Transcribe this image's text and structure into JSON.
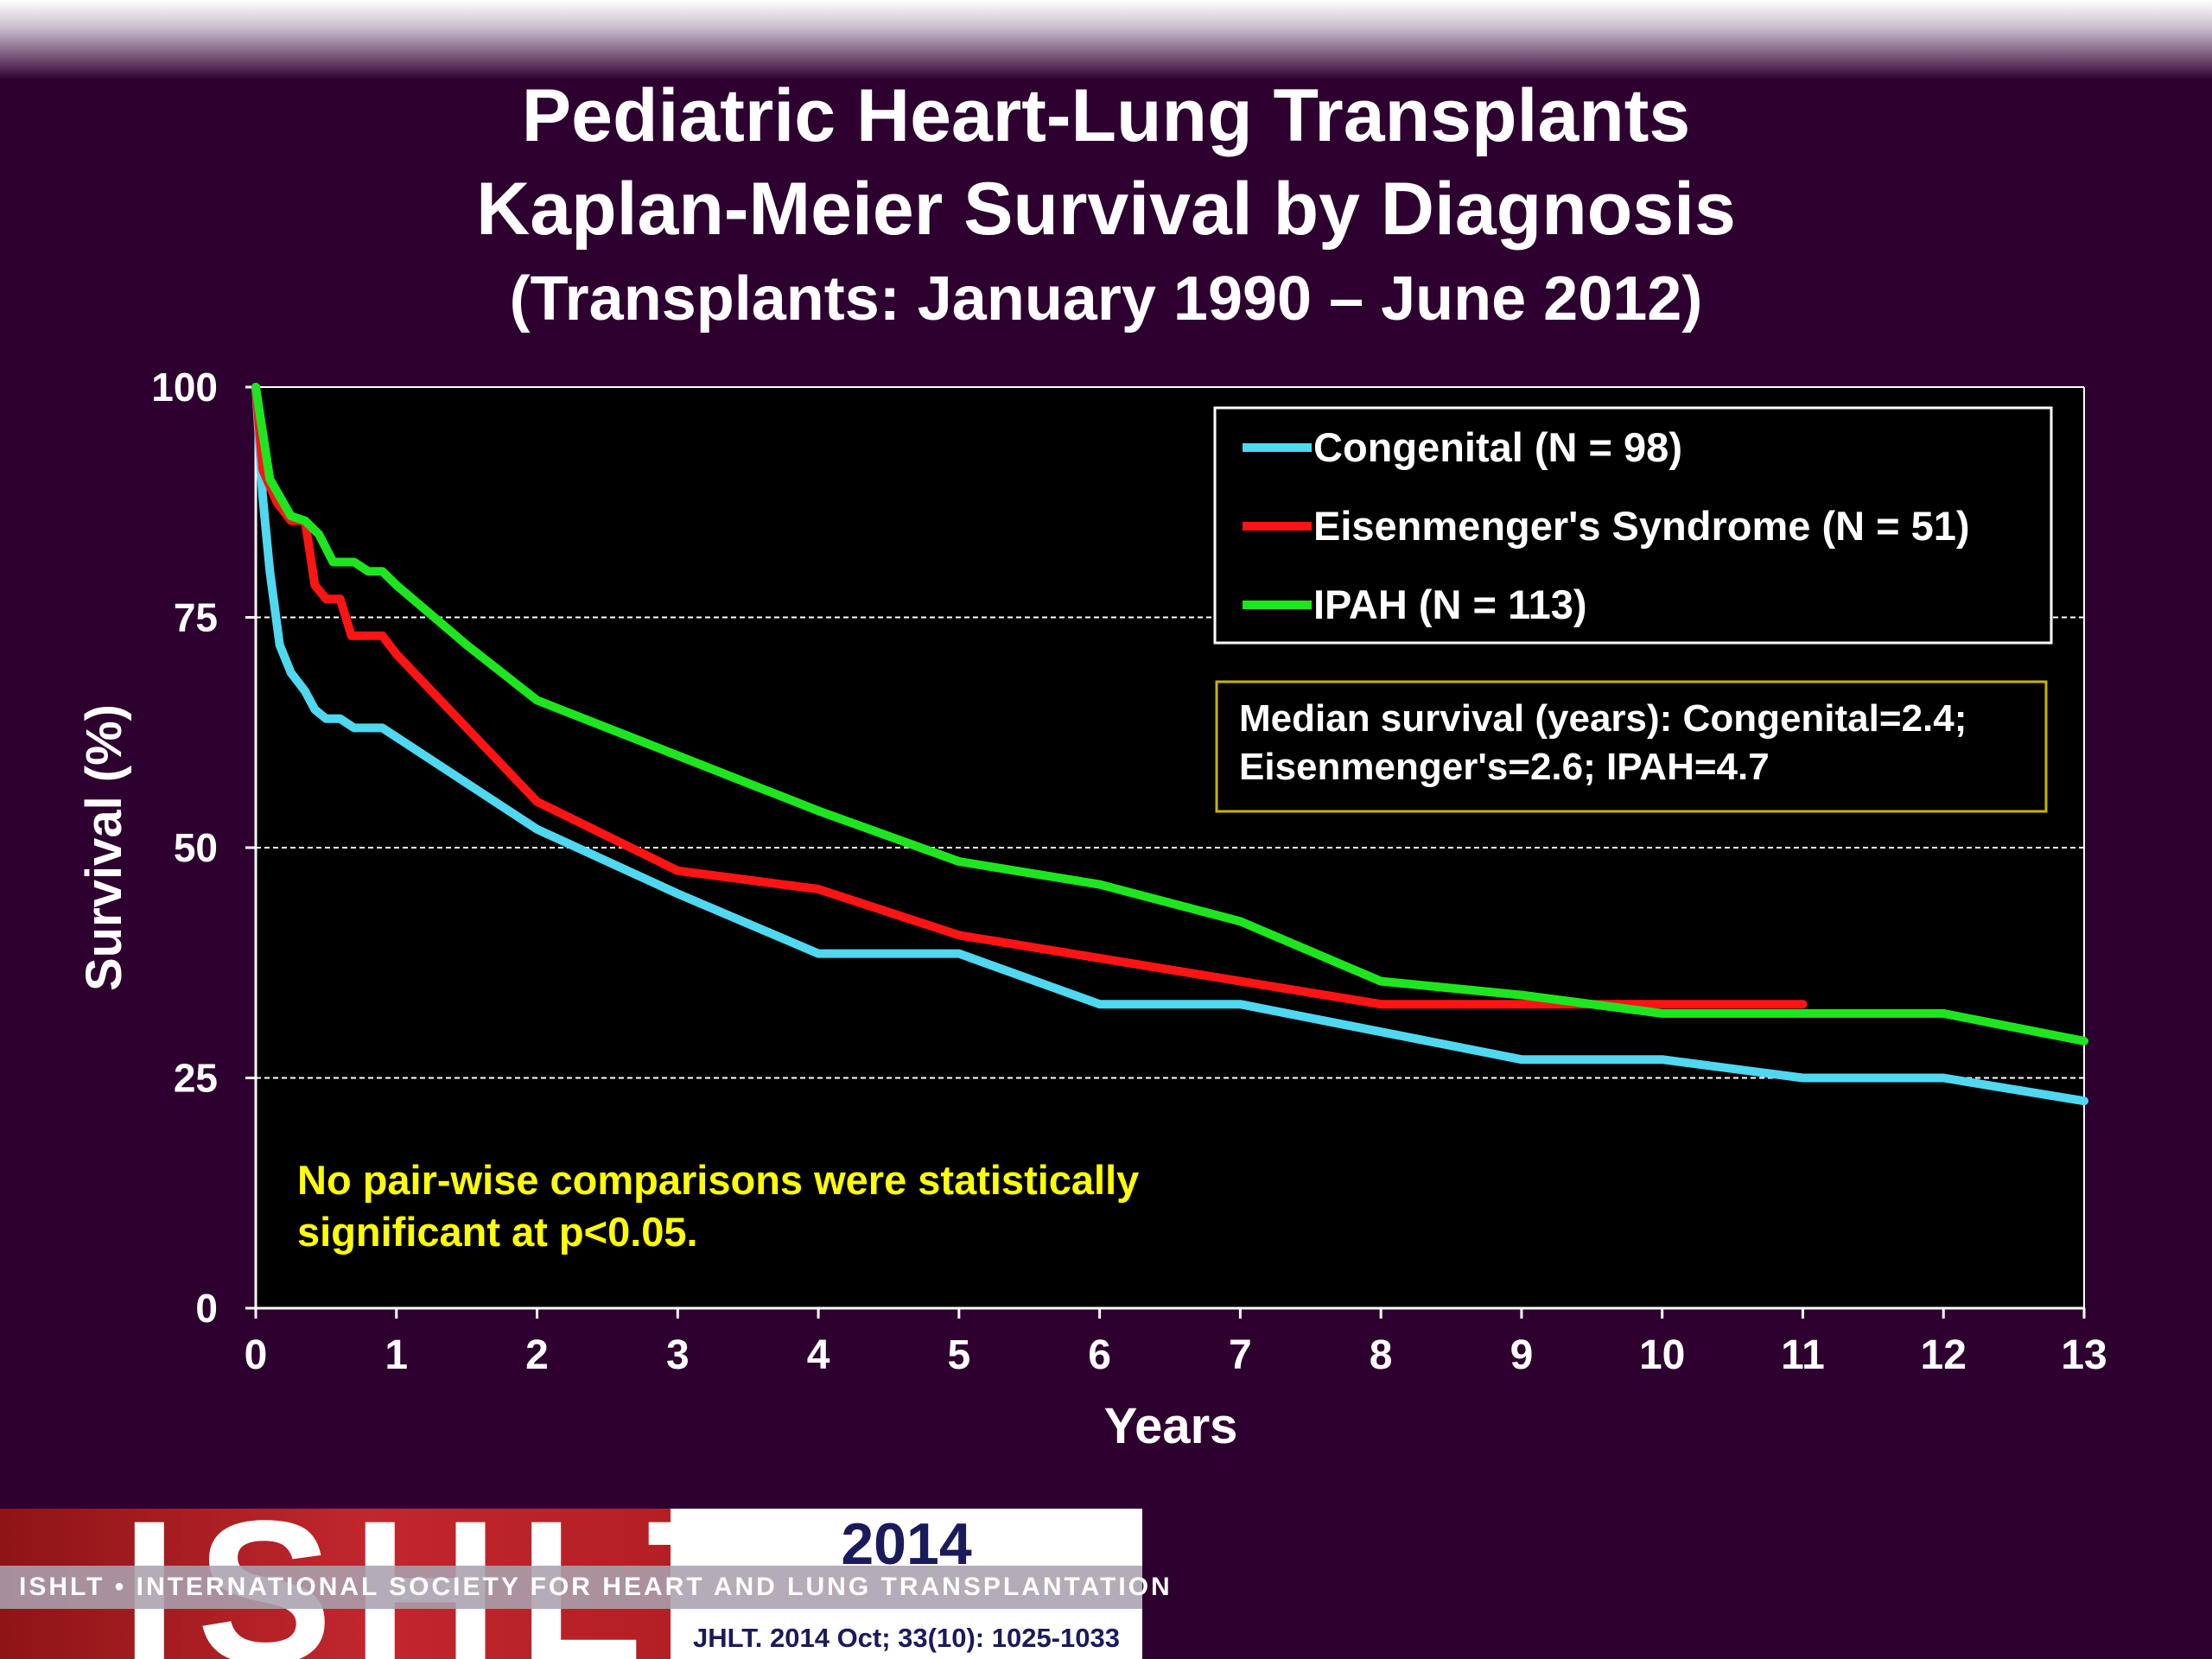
{
  "title": {
    "line1": "Pediatric Heart-Lung Transplants",
    "line2": "Kaplan-Meier Survival by Diagnosis",
    "line3": "(Transplants: January 1990 – June 2012)"
  },
  "median_note": {
    "line1": "Median survival (years): Congenital=2.4;",
    "line2": "Eisenmenger's=2.6; IPAH=4.7"
  },
  "significance_note": {
    "line1": "No pair-wise comparisons were statistically",
    "line2": "significant at p<0.05."
  },
  "footer": {
    "logo_text": "ISHLT",
    "year": "2014",
    "banner": "ISHLT • INTERNATIONAL SOCIETY FOR HEART AND LUNG TRANSPLANTATION",
    "reference": "JHLT. 2014 Oct; 33(10): 1025-1033"
  },
  "colors": {
    "background": "#2e0030",
    "plot_background": "#000000",
    "note_yellow": "#ffff00",
    "median_box_border": "#c8b400"
  },
  "chart_data": {
    "type": "line",
    "xlabel": "Years",
    "ylabel": "Survival (%)",
    "xlim": [
      0,
      13
    ],
    "ylim": [
      0,
      100
    ],
    "xticks": [
      0,
      1,
      2,
      3,
      4,
      5,
      6,
      7,
      8,
      9,
      10,
      11,
      12,
      13
    ],
    "yticks": [
      0,
      25,
      50,
      75,
      100
    ],
    "grid": "horizontal dashed",
    "legend_position": "top-right",
    "series": [
      {
        "name": "Congenital (N = 98)",
        "color": "#4fd8ef",
        "points": [
          [
            0,
            100
          ],
          [
            0.05,
            88
          ],
          [
            0.1,
            80
          ],
          [
            0.17,
            72
          ],
          [
            0.25,
            69
          ],
          [
            0.35,
            67
          ],
          [
            0.42,
            65
          ],
          [
            0.5,
            64
          ],
          [
            0.6,
            64
          ],
          [
            0.7,
            63
          ],
          [
            0.8,
            63
          ],
          [
            0.9,
            63
          ],
          [
            1,
            62
          ],
          [
            1.5,
            57
          ],
          [
            2,
            52
          ],
          [
            3,
            45
          ],
          [
            4,
            38.5
          ],
          [
            5,
            38.5
          ],
          [
            6,
            33
          ],
          [
            7,
            33
          ],
          [
            8,
            30
          ],
          [
            9,
            27
          ],
          [
            10,
            27
          ],
          [
            11,
            25
          ],
          [
            12,
            25
          ],
          [
            13,
            22.5
          ]
        ]
      },
      {
        "name": "Eisenmenger's Syndrome  (N = 51)",
        "color": "#ff1414",
        "points": [
          [
            0,
            100
          ],
          [
            0.05,
            91
          ],
          [
            0.15,
            87.5
          ],
          [
            0.25,
            85.5
          ],
          [
            0.35,
            85.5
          ],
          [
            0.42,
            78.5
          ],
          [
            0.5,
            77
          ],
          [
            0.6,
            77
          ],
          [
            0.68,
            73
          ],
          [
            0.8,
            73
          ],
          [
            0.9,
            73
          ],
          [
            1,
            71
          ],
          [
            1.5,
            63
          ],
          [
            2,
            55
          ],
          [
            3,
            47.5
          ],
          [
            4,
            45.5
          ],
          [
            5,
            40.5
          ],
          [
            6,
            38
          ],
          [
            7,
            35.5
          ],
          [
            8,
            33
          ],
          [
            9,
            33
          ],
          [
            10,
            33
          ],
          [
            11,
            33
          ]
        ]
      },
      {
        "name": "IPAH (N = 113)",
        "color": "#1ee61e",
        "points": [
          [
            0,
            100
          ],
          [
            0.1,
            90
          ],
          [
            0.25,
            86
          ],
          [
            0.35,
            85.5
          ],
          [
            0.45,
            84
          ],
          [
            0.55,
            81
          ],
          [
            0.7,
            81
          ],
          [
            0.8,
            80
          ],
          [
            0.9,
            80
          ],
          [
            1,
            78.5
          ],
          [
            1.5,
            72
          ],
          [
            2,
            66
          ],
          [
            3,
            60
          ],
          [
            4,
            54
          ],
          [
            5,
            48.5
          ],
          [
            6,
            46
          ],
          [
            7,
            42
          ],
          [
            8,
            35.5
          ],
          [
            9,
            34
          ],
          [
            10,
            32
          ],
          [
            11,
            32
          ],
          [
            12,
            32
          ],
          [
            13,
            29
          ]
        ]
      }
    ]
  }
}
